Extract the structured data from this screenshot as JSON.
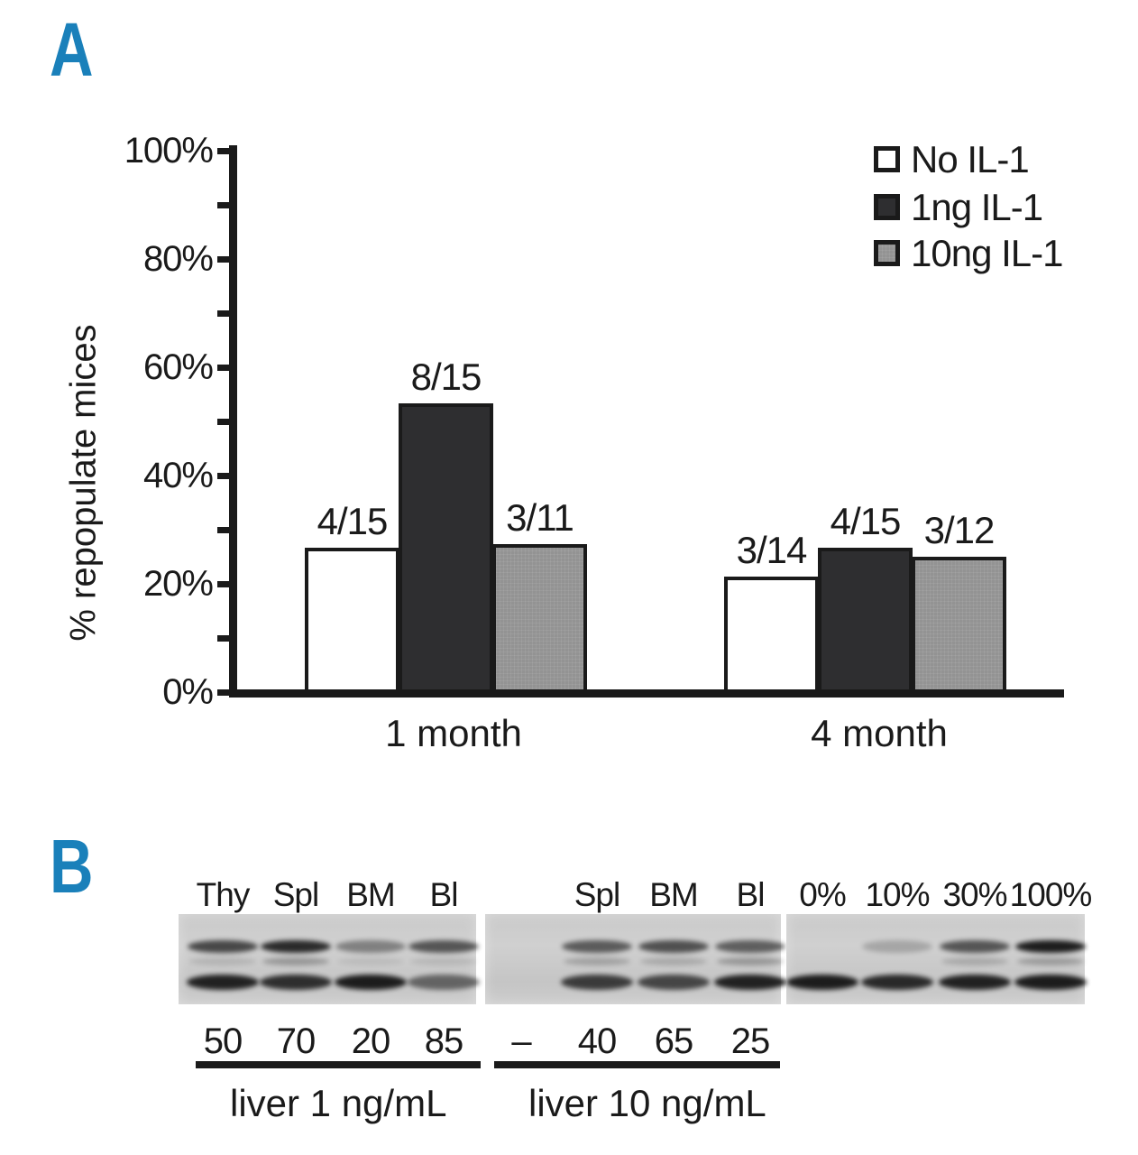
{
  "accent_color": "#1a80ba",
  "ink_color": "#1a1a1a",
  "panel_a_label": "A",
  "panel_b_label": "B",
  "chart_data": {
    "type": "bar",
    "title": "",
    "xlabel": "",
    "ylabel": "% repopulate mices",
    "ylim": [
      0,
      100
    ],
    "ytick_step_percent": 10,
    "ytick_labels": [
      "0%",
      "20%",
      "40%",
      "60%",
      "80%",
      "100%"
    ],
    "grid": false,
    "legend_position": "top-right",
    "categories": [
      "1 month",
      "4 month"
    ],
    "series": [
      {
        "name": "No IL-1",
        "color": "#ffffff",
        "values": [
          26.7,
          21.4
        ],
        "bar_labels": [
          "4/15",
          "3/14"
        ]
      },
      {
        "name": "1ng IL-1",
        "color": "#2e2e30",
        "values": [
          53.3,
          26.7
        ],
        "bar_labels": [
          "8/15",
          "4/15"
        ]
      },
      {
        "name": "10ng IL-1",
        "color": "#939393",
        "values": [
          27.3,
          25.0
        ],
        "bar_labels": [
          "3/11",
          "3/12"
        ]
      }
    ]
  },
  "panel_b": {
    "gels": [
      {
        "caption": "liver 1 ng/mL",
        "lanes": [
          {
            "label": "Thy",
            "value": "50",
            "bands": {
              "upper": 0.72,
              "middle": 0.12,
              "lower": 0.92
            }
          },
          {
            "label": "Spl",
            "value": "70",
            "bands": {
              "upper": 0.88,
              "middle": 0.28,
              "lower": 0.85
            }
          },
          {
            "label": "BM",
            "value": "20",
            "bands": {
              "upper": 0.42,
              "middle": 0.08,
              "lower": 0.95
            }
          },
          {
            "label": "Bl",
            "value": "85",
            "bands": {
              "upper": 0.65,
              "middle": 0.1,
              "lower": 0.55
            }
          }
        ]
      },
      {
        "caption": "liver 10 ng/mL",
        "lanes": [
          {
            "label": "",
            "value": "–",
            "bands": {}
          },
          {
            "label": "Spl",
            "value": "40",
            "bands": {
              "upper": 0.62,
              "middle": 0.22,
              "lower": 0.78
            }
          },
          {
            "label": "BM",
            "value": "65",
            "bands": {
              "upper": 0.68,
              "middle": 0.18,
              "lower": 0.72
            }
          },
          {
            "label": "Bl",
            "value": "25",
            "bands": {
              "upper": 0.6,
              "middle": 0.28,
              "lower": 0.92
            }
          }
        ]
      },
      {
        "caption": "",
        "lanes": [
          {
            "label": "0%",
            "value": "",
            "bands": {
              "lower": 0.95
            }
          },
          {
            "label": "10%",
            "value": "",
            "bands": {
              "upper": 0.22,
              "lower": 0.88
            }
          },
          {
            "label": "30%",
            "value": "",
            "bands": {
              "upper": 0.65,
              "middle": 0.18,
              "lower": 0.92
            }
          },
          {
            "label": "100%",
            "value": "",
            "bands": {
              "upper": 0.95,
              "middle": 0.25,
              "lower": 0.95
            }
          }
        ]
      }
    ]
  }
}
